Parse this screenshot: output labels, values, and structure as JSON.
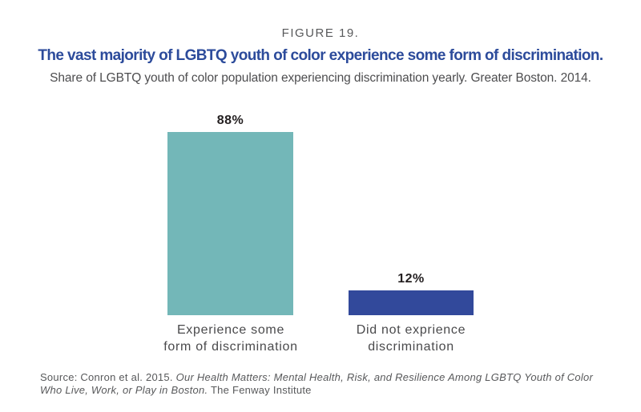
{
  "page": {
    "figure_label": "FIGURE 19.",
    "title": "The vast majority of LGBTQ youth of color experience some form of discrimination.",
    "subtitle": "Share of LGBTQ youth of color population experiencing discrimination yearly. Greater Boston. 2014."
  },
  "chart_data": {
    "type": "bar",
    "title": "The vast majority of LGBTQ youth of color experience some form of discrimination.",
    "subtitle": "Share of LGBTQ youth of color population experiencing discrimination yearly. Greater Boston. 2014.",
    "categories": [
      "Experience some form of discrimination",
      "Did not exprience discrimination"
    ],
    "values": [
      88,
      12
    ],
    "unit": "percent",
    "ylim": [
      0,
      100
    ],
    "grid": false,
    "legend": "none",
    "axes_shown": false,
    "bars": [
      {
        "value": 88,
        "value_label": "88%",
        "color": "#73B7B8",
        "label_line1": "Experience some",
        "label_line2": "form of discrimination"
      },
      {
        "value": 12,
        "value_label": "12%",
        "color": "#32499B",
        "label_line1": "Did not exprience",
        "label_line2": "discrimination"
      }
    ]
  },
  "source": {
    "line1_regular": "Source: Conron et al. 2015. ",
    "line1_italic": "Our Health Matters: Mental Health, Risk, and Resilience Among LGBTQ Youth of Color",
    "line2_italic": "Who Live, Work, or Play in Boston.",
    "line2_regular": " The Fenway Institute"
  },
  "colors": {
    "title_blue": "#2C4B9B",
    "bar_teal": "#73B7B8",
    "bar_navy": "#32499B",
    "figure_label_gray": "#58595B",
    "subtitle_gray": "#4D4D4F",
    "category_label_gray": "#4A4A4C",
    "value_label_black": "#231F20",
    "source_gray": "#58595B",
    "background": "#FFFFFF"
  }
}
